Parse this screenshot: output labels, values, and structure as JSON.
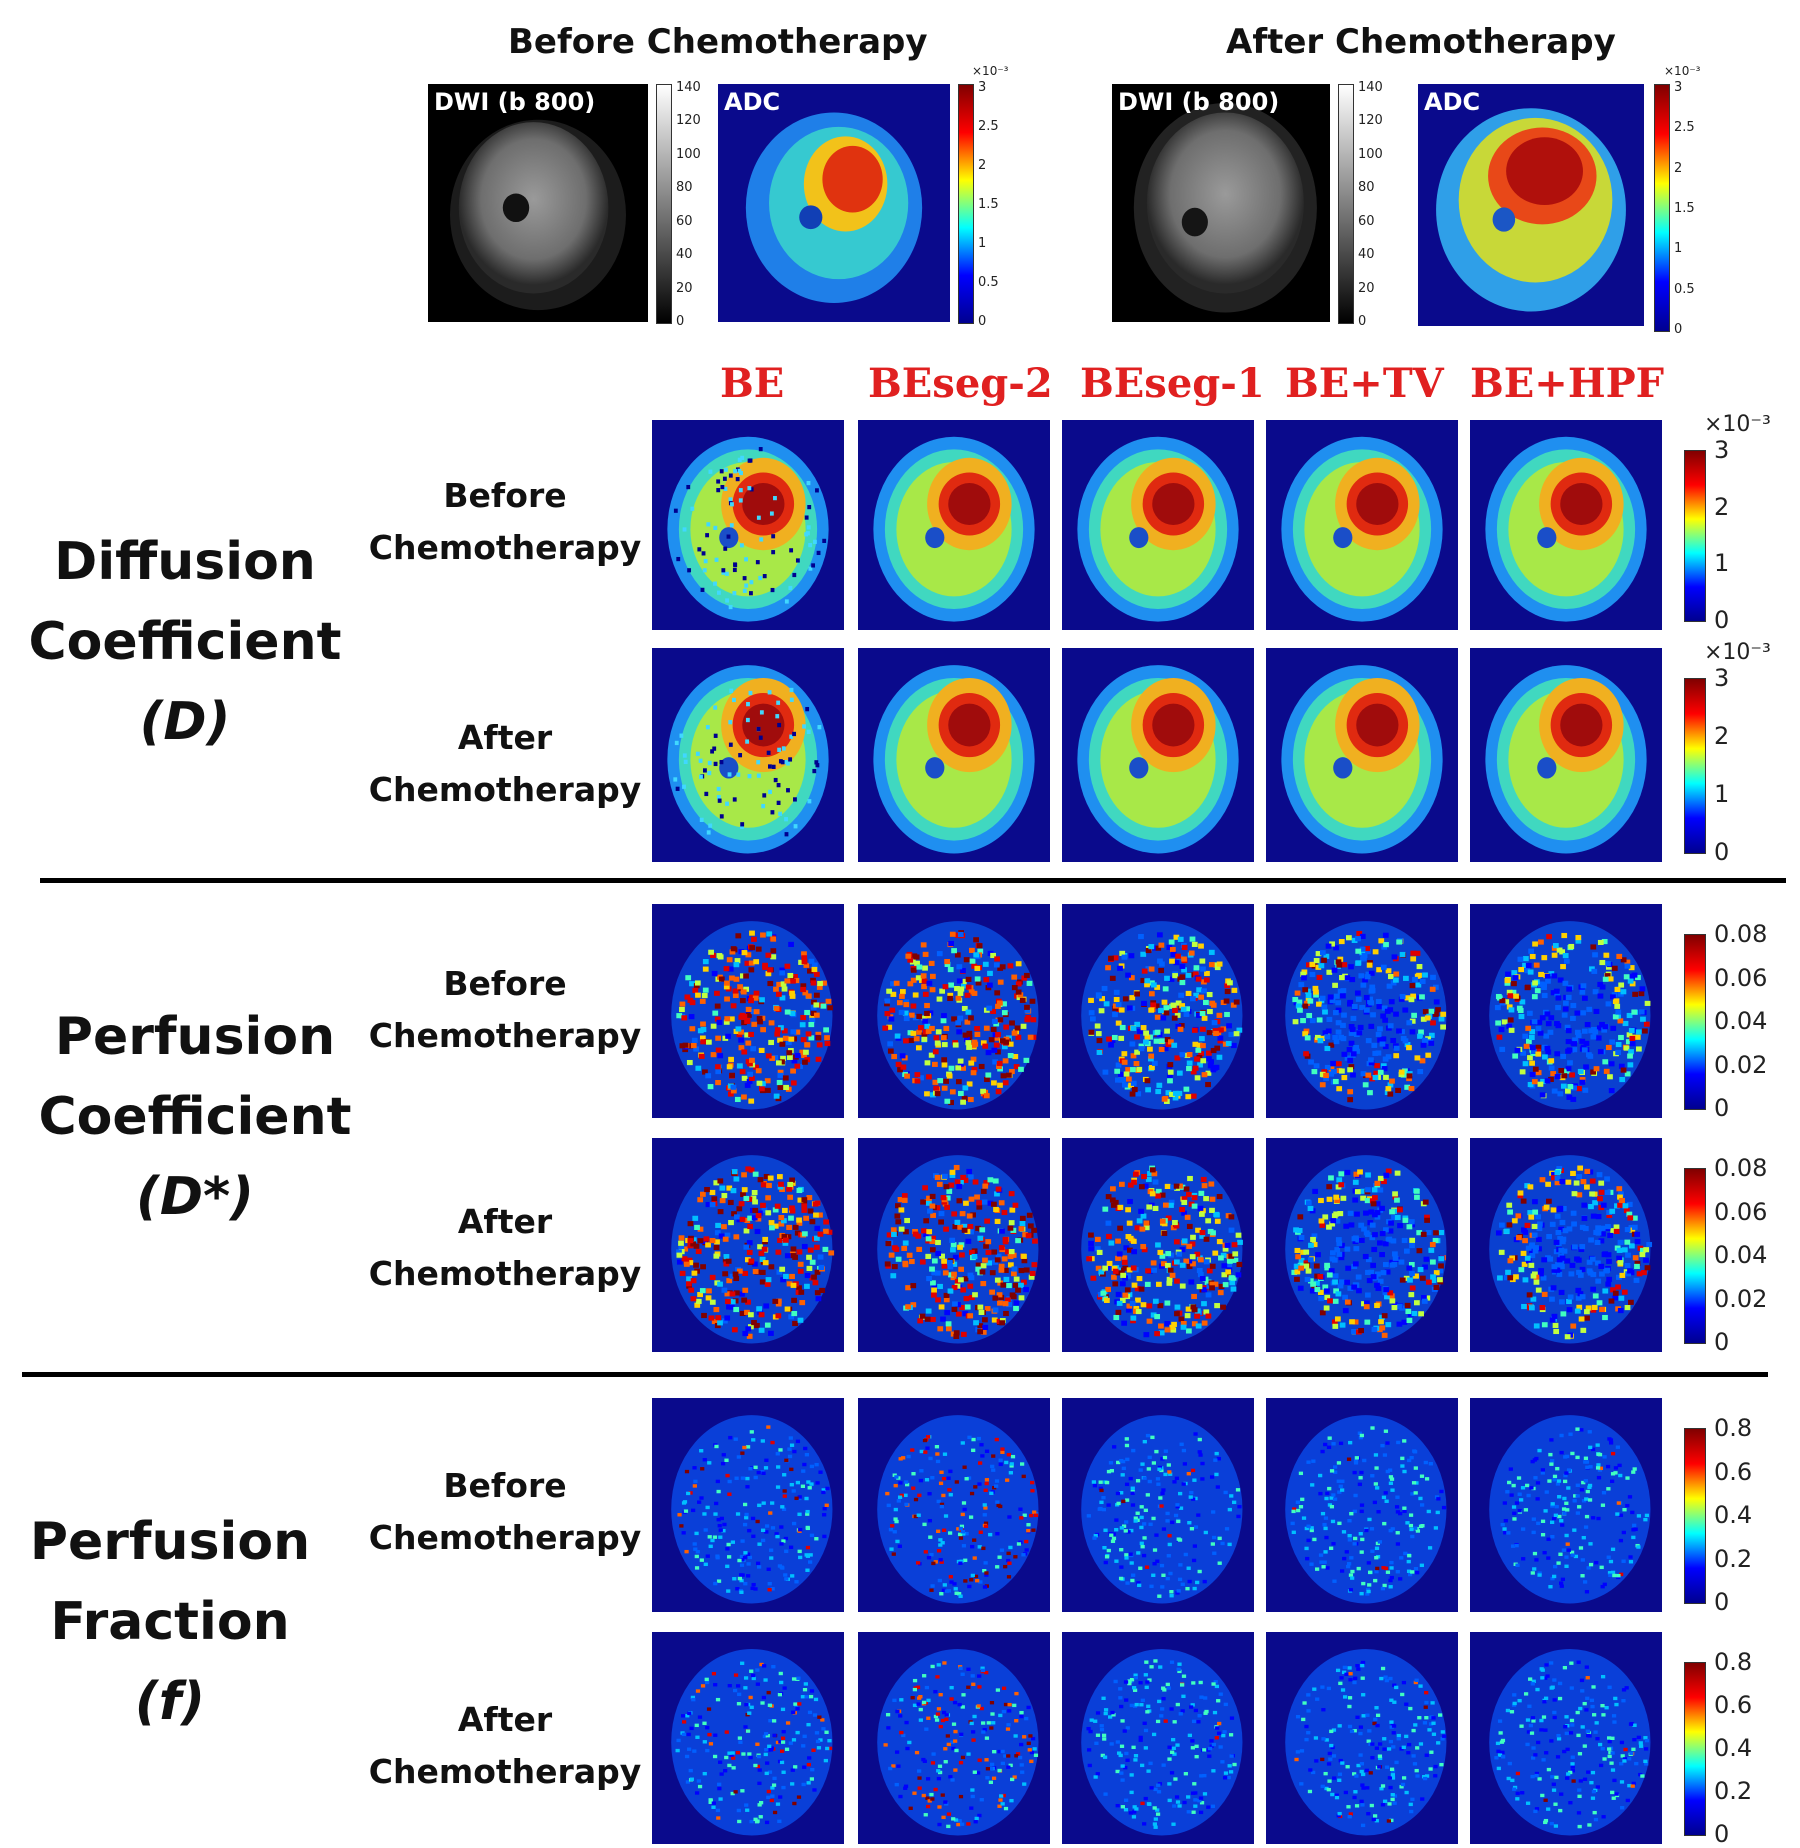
{
  "top": {
    "before_title": "Before Chemotherapy",
    "after_title": "After Chemotherapy",
    "dwi_label": "DWI (b 800)",
    "adc_label": "ADC",
    "dwi_ticks": [
      "140",
      "120",
      "100",
      "80",
      "60",
      "40",
      "20",
      "0"
    ],
    "adc_exponent": "×10⁻³",
    "adc_ticks": [
      "3",
      "2.5",
      "2",
      "1.5",
      "1",
      "0.5",
      "0"
    ]
  },
  "methods": [
    "BE",
    "BEseg-2",
    "BEseg-1",
    "BE+TV",
    "BE+HPF"
  ],
  "row_labels": {
    "before_line1": "Before",
    "before_line2": "Chemotherapy",
    "after_line1": "After",
    "after_line2": "Chemotherapy"
  },
  "sections": [
    {
      "line1": "Diffusion",
      "line2": "Coefficient",
      "line3": "(D)",
      "exponent": "×10⁻³",
      "ticks": [
        "3",
        "2",
        "1",
        "0"
      ]
    },
    {
      "line1": "Perfusion",
      "line2": "Coefficient",
      "line3": "(D*)",
      "ticks": [
        "0.08",
        "0.06",
        "0.04",
        "0.02",
        "0"
      ]
    },
    {
      "line1": "Perfusion",
      "line2": "Fraction",
      "line3": "(f)",
      "ticks": [
        "0.8",
        "0.6",
        "0.4",
        "0.2",
        "0"
      ]
    }
  ],
  "colors": {
    "jet_low": "#00008f",
    "jet_high": "#800000",
    "method_label": "#e02020"
  }
}
